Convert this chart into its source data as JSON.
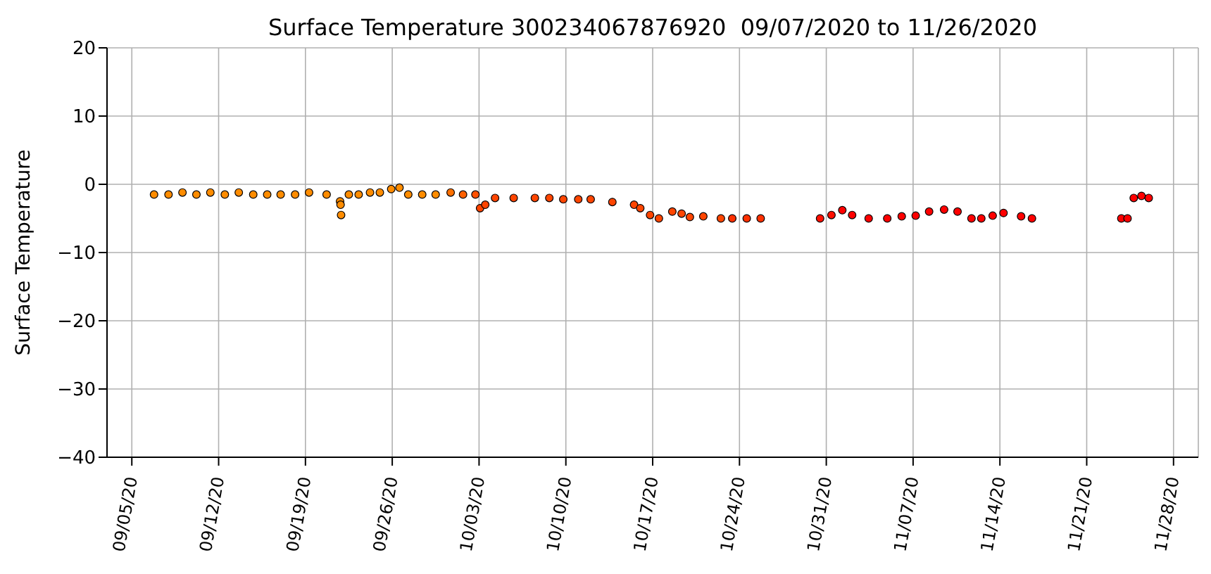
{
  "chart_data": {
    "type": "scatter",
    "title": "Surface Temperature 300234067876920  09/07/2020 to 11/26/2020",
    "ylabel": "Surface Temperature",
    "marker": "circle",
    "grid": true,
    "xlim": [
      "2020-09-03",
      "2020-11-30"
    ],
    "xticks": [
      {
        "value": "2020-09-05",
        "label": "09/05/20"
      },
      {
        "value": "2020-09-12",
        "label": "09/12/20"
      },
      {
        "value": "2020-09-19",
        "label": "09/19/20"
      },
      {
        "value": "2020-09-26",
        "label": "09/26/20"
      },
      {
        "value": "2020-10-03",
        "label": "10/03/20"
      },
      {
        "value": "2020-10-10",
        "label": "10/10/20"
      },
      {
        "value": "2020-10-17",
        "label": "10/17/20"
      },
      {
        "value": "2020-10-24",
        "label": "10/24/20"
      },
      {
        "value": "2020-10-31",
        "label": "10/31/20"
      },
      {
        "value": "2020-11-07",
        "label": "11/07/20"
      },
      {
        "value": "2020-11-14",
        "label": "11/14/20"
      },
      {
        "value": "2020-11-21",
        "label": "11/21/20"
      },
      {
        "value": "2020-11-28",
        "label": "11/28/20"
      }
    ],
    "ylim": [
      -40,
      20
    ],
    "yticks": [
      {
        "value": -40,
        "label": "−40"
      },
      {
        "value": -30,
        "label": "−30"
      },
      {
        "value": -20,
        "label": "−20"
      },
      {
        "value": -10,
        "label": "−10"
      },
      0,
      10,
      20
    ],
    "x": [
      "2020-09-06T19:00",
      "2020-09-07T23:00",
      "2020-09-09T02:00",
      "2020-09-10T05:00",
      "2020-09-11T08:00",
      "2020-09-12T12:00",
      "2020-09-13T15:00",
      "2020-09-14T19:00",
      "2020-09-15T22:00",
      "2020-09-17T00:00",
      "2020-09-18T04:00",
      "2020-09-19T07:00",
      "2020-09-20T17:00",
      "2020-09-21T19:00",
      "2020-09-21T20:00",
      "2020-09-21T21:00",
      "2020-09-22T12:00",
      "2020-09-23T07:00",
      "2020-09-24T05:00",
      "2020-09-25T00:00",
      "2020-09-25T22:00",
      "2020-09-26T14:00",
      "2020-09-27T07:00",
      "2020-09-28T10:00",
      "2020-09-29T12:00",
      "2020-09-30T17:00",
      "2020-10-01T17:00",
      "2020-10-02T17:00",
      "2020-10-03T02:00",
      "2020-10-03T12:00",
      "2020-10-04T07:00",
      "2020-10-05T19:00",
      "2020-10-07T12:00",
      "2020-10-08T16:00",
      "2020-10-09T19:00",
      "2020-10-11T00:00",
      "2020-10-12T00:00",
      "2020-10-13T18:00",
      "2020-10-15T12:00",
      "2020-10-16T00:00",
      "2020-10-16T19:00",
      "2020-10-17T12:00",
      "2020-10-18T14:00",
      "2020-10-19T08:00",
      "2020-10-20T00:00",
      "2020-10-21T02:00",
      "2020-10-22T12:00",
      "2020-10-23T10:00",
      "2020-10-24T14:00",
      "2020-10-25T17:00",
      "2020-10-30T12:00",
      "2020-10-31T10:00",
      "2020-11-01T07:00",
      "2020-11-02T02:00",
      "2020-11-03T10:00",
      "2020-11-04T22:00",
      "2020-11-06T02:00",
      "2020-11-07T05:00",
      "2020-11-08T07:00",
      "2020-11-09T12:00",
      "2020-11-10T14:00",
      "2020-11-11T17:00",
      "2020-11-12T12:00",
      "2020-11-13T10:00",
      "2020-11-14T07:00",
      "2020-11-15T17:00",
      "2020-11-16T14:00",
      "2020-11-23T19:00",
      "2020-11-24T07:00",
      "2020-11-24T19:00",
      "2020-11-25T10:00",
      "2020-11-26T00:00"
    ],
    "values": [
      -1.5,
      -1.5,
      -1.2,
      -1.5,
      -1.2,
      -1.5,
      -1.2,
      -1.5,
      -1.5,
      -1.5,
      -1.5,
      -1.2,
      -1.5,
      -2.5,
      -3,
      -4.5,
      -1.5,
      -1.5,
      -1.2,
      -1.2,
      -0.7,
      -0.5,
      -1.5,
      -1.5,
      -1.5,
      -1.2,
      -1.5,
      -1.5,
      -3.5,
      -3,
      -2,
      -2,
      -2,
      -2,
      -2.2,
      -2.2,
      -2.2,
      -2.6,
      -3,
      -3.5,
      -4.5,
      -5,
      -4,
      -4.3,
      -4.8,
      -4.7,
      -5,
      -5,
      -5,
      -5,
      -5,
      -4.5,
      -3.8,
      -4.5,
      -5,
      -5,
      -4.7,
      -4.6,
      -4,
      -3.7,
      -4,
      -5,
      -5,
      -4.6,
      -4.2,
      -4.7,
      -5,
      -5,
      -5,
      -2,
      -1.7,
      -2
    ],
    "colors": [
      "#ff8c00",
      "#ff8c00",
      "#ff8c00",
      "#ff8c00",
      "#ff8c00",
      "#ff8c00",
      "#ff8c00",
      "#ff8c00",
      "#ff8c00",
      "#ff8c00",
      "#ff8c00",
      "#ff8c00",
      "#ff8c00",
      "#ff8c00",
      "#ff8c00",
      "#ff8c00",
      "#ff8c00",
      "#ff8c00",
      "#ff8c00",
      "#ff8c00",
      "#ff8c00",
      "#ff8c00",
      "#ff8c00",
      "#ff8c00",
      "#ff8c00",
      "#ff7000",
      "#ff6000",
      "#ff5000",
      "#ff4500",
      "#ff4500",
      "#ff4500",
      "#ff4500",
      "#ff4500",
      "#ff4500",
      "#ff4500",
      "#ff4500",
      "#ff4500",
      "#ff4500",
      "#ff4500",
      "#ff4500",
      "#ff4500",
      "#ff4500",
      "#ff4500",
      "#ff4500",
      "#ff4500",
      "#ff4500",
      "#ff4500",
      "#ff3000",
      "#ff3000",
      "#ff3000",
      "#ff1000",
      "#ff1000",
      "#ff0000",
      "#ff0000",
      "#ff0000",
      "#ff0000",
      "#ff0000",
      "#ff0000",
      "#ff0000",
      "#ff0000",
      "#ff0000",
      "#ff0000",
      "#ff0000",
      "#ff0000",
      "#ff0000",
      "#ff0000",
      "#ff0000",
      "#ff0000",
      "#ff0000",
      "#ff0000",
      "#ff0000",
      "#ff0000"
    ]
  }
}
